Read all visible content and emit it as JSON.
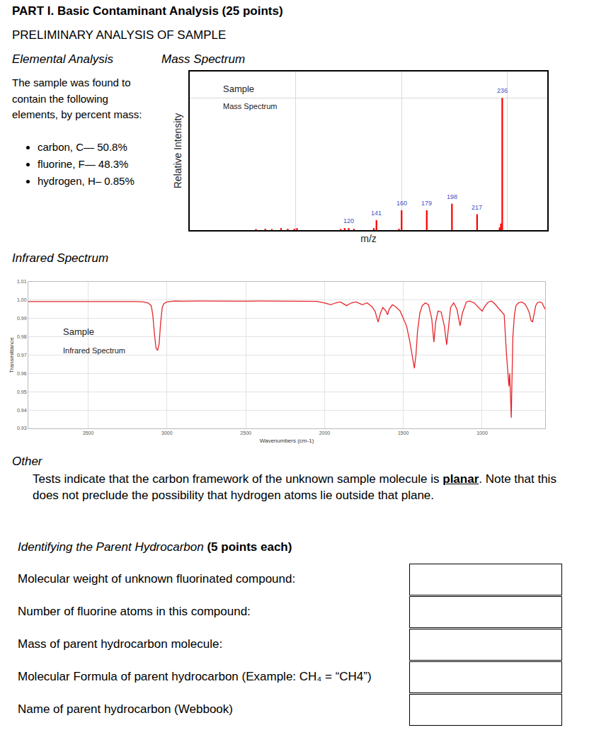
{
  "header": {
    "title": "PART I. Basic Contaminant Analysis (25 points)",
    "subtitle": "PRELIMINARY ANALYSIS OF SAMPLE"
  },
  "elemental_analysis": {
    "heading": "Elemental Analysis",
    "intro": "The sample was found to contain the following elements, by percent mass:",
    "items": [
      "carbon, C— 50.8%",
      "fluorine, F— 48.3%",
      "hydrogen, H– 0.85%"
    ]
  },
  "mass_spectrum_heading": "Mass Spectrum",
  "infrared_heading": "Infrared Spectrum",
  "other": {
    "heading": "Other",
    "text_before": "Tests indicate that the carbon framework of the unknown sample molecule is ",
    "emphasis": "planar",
    "text_after": ". Note that this does not preclude the possibility that hydrogen atoms lie outside that plane."
  },
  "questions": {
    "heading": "Identifying the Parent Hydrocarbon",
    "heading_points": "(5 points each)",
    "rows": [
      "Molecular weight of unknown fluorinated compound:",
      "Number of fluorine atoms in this compound:",
      "Mass of parent hydrocarbon molecule:",
      "Molecular Formula of parent hydrocarbon (Example: CH₄ = “CH4”)",
      "Name of parent hydrocarbon (Webbook)"
    ]
  },
  "chart_data": [
    {
      "type": "bar",
      "title": "Sample",
      "subtitle": "Mass Spectrum",
      "x_label": "m/z",
      "y_label": "Relative Intensity",
      "x": [
        50,
        57,
        62,
        69,
        74,
        79,
        81,
        114,
        117,
        120,
        124,
        139,
        141,
        158,
        160,
        179,
        198,
        217,
        234,
        235,
        236
      ],
      "values": [
        0.8,
        1,
        0.8,
        1.5,
        1,
        1,
        1.5,
        0.8,
        1.5,
        1.5,
        1,
        1.5,
        7.5,
        1,
        15,
        15,
        20,
        12,
        2,
        5,
        100
      ],
      "peak_labels": [
        120,
        141,
        160,
        179,
        198,
        217,
        236
      ],
      "color": "#ff0000",
      "xlim": [
        0,
        270
      ],
      "ylim": [
        0,
        120
      ],
      "xticks": [
        80,
        160,
        240
      ],
      "yticks": [
        100
      ],
      "grid": true,
      "tick_labels": false
    },
    {
      "type": "line",
      "title": "Sample",
      "subtitle": "Infrared Spectrum",
      "x_label": "Wavenumbers (cm-1)",
      "y_label": "Transmittance",
      "x": [
        3880,
        3800,
        3700,
        3600,
        3500,
        3400,
        3300,
        3200,
        3150,
        3120,
        3100,
        3090,
        3080,
        3070,
        3060,
        3050,
        3040,
        3030,
        3020,
        3000,
        2950,
        2900,
        2800,
        2700,
        2600,
        2500,
        2400,
        2300,
        2200,
        2100,
        2050,
        2000,
        1960,
        1930,
        1900,
        1860,
        1830,
        1800,
        1760,
        1730,
        1700,
        1680,
        1660,
        1645,
        1630,
        1610,
        1600,
        1590,
        1570,
        1550,
        1520,
        1500,
        1480,
        1460,
        1445,
        1430,
        1420,
        1410,
        1395,
        1380,
        1360,
        1340,
        1320,
        1306,
        1295,
        1280,
        1260,
        1240,
        1225,
        1215,
        1200,
        1180,
        1160,
        1140,
        1125,
        1100,
        1080,
        1050,
        1020,
        1000,
        980,
        960,
        940,
        920,
        900,
        880,
        860,
        845,
        835,
        830,
        825,
        818,
        815,
        812,
        805,
        795,
        785,
        770,
        750,
        730,
        715,
        700,
        690,
        680,
        670,
        660,
        650,
        635,
        620,
        610,
        600
      ],
      "values": [
        0.9992,
        0.9992,
        0.9993,
        0.9992,
        0.9993,
        0.9992,
        0.9993,
        0.9992,
        0.999,
        0.9985,
        0.997,
        0.992,
        0.982,
        0.974,
        0.9725,
        0.976,
        0.988,
        0.996,
        0.998,
        0.999,
        0.9995,
        0.9994,
        0.9995,
        0.9994,
        0.9995,
        0.9994,
        0.9995,
        0.9995,
        0.9994,
        0.9995,
        0.9993,
        0.9985,
        0.9975,
        0.9985,
        0.999,
        0.997,
        0.9985,
        0.999,
        0.9975,
        0.9985,
        0.9965,
        0.994,
        0.988,
        0.993,
        0.996,
        0.994,
        0.992,
        0.995,
        0.9975,
        0.9965,
        0.994,
        0.99,
        0.986,
        0.978,
        0.97,
        0.9628,
        0.97,
        0.983,
        0.993,
        0.997,
        0.9985,
        0.9975,
        0.99,
        0.9771,
        0.988,
        0.994,
        0.9935,
        0.986,
        0.9756,
        0.985,
        0.996,
        0.9985,
        0.995,
        0.986,
        0.993,
        0.999,
        0.9995,
        0.9985,
        0.996,
        0.994,
        0.997,
        0.999,
        0.9995,
        0.998,
        0.996,
        0.994,
        0.992,
        0.97,
        0.956,
        0.953,
        0.96,
        0.945,
        0.9358,
        0.95,
        0.98,
        0.992,
        0.997,
        0.9985,
        0.999,
        0.998,
        0.996,
        0.993,
        0.989,
        0.988,
        0.992,
        0.997,
        0.9985,
        0.999,
        0.9985,
        0.997,
        0.995
      ],
      "color": "#e8262b",
      "xlim": [
        3880,
        600
      ],
      "ylim": [
        0.93,
        1.01
      ],
      "xticks": [
        3500,
        3000,
        2500,
        2000,
        1500,
        1000
      ],
      "yticks": [
        0.93,
        0.94,
        0.95,
        0.96,
        0.97,
        0.98,
        0.99,
        {
          "value": 1,
          "label": "1.00"
        },
        1.01
      ],
      "grid": true
    }
  ]
}
